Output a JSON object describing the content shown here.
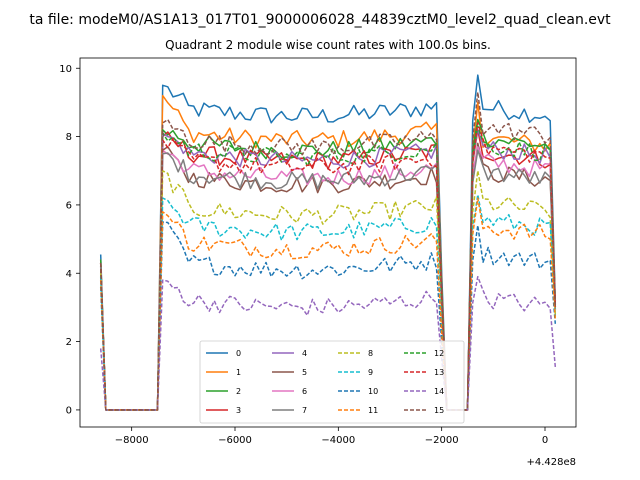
{
  "figure": {
    "suptitle": "ta file: modeM0/AS1A13_017T01_9000006028_44839cztM0_level2_quad_clean.evt",
    "title": "Quadrant 2 module wise count rates with 100.0s bins.",
    "offset_text": "+4.428e8"
  },
  "chart_data": {
    "type": "line",
    "title": "Quadrant 2 module wise count rates with 100.0s bins.",
    "xlabel": "",
    "ylabel": "",
    "x_offset": 442800000,
    "xlim": [
      -9000,
      600
    ],
    "ylim": [
      -0.5,
      10.3
    ],
    "xticks": [
      -8000,
      -6000,
      -4000,
      -2000,
      0
    ],
    "xtick_labels": [
      "−8000",
      "−6000",
      "−4000",
      "−2000",
      "0"
    ],
    "yticks": [
      0,
      2,
      4,
      6,
      8,
      10
    ],
    "ytick_labels": [
      "0",
      "2",
      "4",
      "6",
      "8",
      "10"
    ],
    "grid": false,
    "legend_placement": "lower center",
    "legend_columns": 4,
    "segments": [
      {
        "x_start": -8600,
        "x_end": -7500
      },
      {
        "x_start": -7400,
        "x_end": -2000
      },
      {
        "x_start": -1400,
        "x_end": 200
      }
    ],
    "series": [
      {
        "name": "0",
        "color": "#1f77b4",
        "dash": "solid",
        "level_obs1": 8.9,
        "level_obs2": 8.9,
        "start_value": 4.55,
        "peak_value": 9.5,
        "peak_value2": 9.8
      },
      {
        "name": "1",
        "color": "#ff7f0e",
        "dash": "solid",
        "level_obs1": 8.2,
        "level_obs2": 8.0,
        "start_value": 4.4,
        "peak_value": 9.2,
        "peak_value2": 9.0
      },
      {
        "name": "2",
        "color": "#2ca02c",
        "dash": "solid",
        "level_obs1": 7.9,
        "level_obs2": 8.0,
        "start_value": 4.4,
        "peak_value": 8.2,
        "peak_value2": 8.5
      },
      {
        "name": "3",
        "color": "#d62728",
        "dash": "solid",
        "level_obs1": 7.6,
        "level_obs2": 7.6,
        "start_value": 4.3,
        "peak_value": 8.0,
        "peak_value2": 8.2
      },
      {
        "name": "4",
        "color": "#9467bd",
        "dash": "solid",
        "level_obs1": 7.6,
        "level_obs2": 7.7,
        "start_value": 4.3,
        "peak_value": 8.1,
        "peak_value2": 8.2
      },
      {
        "name": "5",
        "color": "#8c564b",
        "dash": "solid",
        "level_obs1": 6.9,
        "level_obs2": 7.0,
        "start_value": 4.2,
        "peak_value": 7.6,
        "peak_value2": 7.8
      },
      {
        "name": "6",
        "color": "#e377c2",
        "dash": "solid",
        "level_obs1": 7.1,
        "level_obs2": 7.3,
        "start_value": 4.2,
        "peak_value": 7.6,
        "peak_value2": 7.7
      },
      {
        "name": "7",
        "color": "#7f7f7f",
        "dash": "solid",
        "level_obs1": 7.0,
        "level_obs2": 7.0,
        "start_value": 4.2,
        "peak_value": 7.5,
        "peak_value2": 7.6
      },
      {
        "name": "8",
        "color": "#bcbd22",
        "dash": "dashed",
        "level_obs1": 6.0,
        "level_obs2": 6.1,
        "start_value": 4.0,
        "peak_value": 7.0,
        "peak_value2": 7.0
      },
      {
        "name": "9",
        "color": "#17becf",
        "dash": "dashed",
        "level_obs1": 5.5,
        "level_obs2": 5.6,
        "start_value": 3.9,
        "peak_value": 6.2,
        "peak_value2": 6.3
      },
      {
        "name": "10",
        "color": "#1f77b4",
        "dash": "dashed",
        "level_obs1": 4.4,
        "level_obs2": 4.6,
        "start_value": 3.6,
        "peak_value": 5.5,
        "peak_value2": 5.4
      },
      {
        "name": "11",
        "color": "#ff7f0e",
        "dash": "dashed",
        "level_obs1": 5.0,
        "level_obs2": 5.4,
        "start_value": 3.8,
        "peak_value": 5.8,
        "peak_value2": 6.2
      },
      {
        "name": "12",
        "color": "#2ca02c",
        "dash": "dashed",
        "level_obs1": 7.7,
        "level_obs2": 7.8,
        "start_value": 4.3,
        "peak_value": 8.1,
        "peak_value2": 8.3
      },
      {
        "name": "13",
        "color": "#d62728",
        "dash": "dashed",
        "level_obs1": 7.4,
        "level_obs2": 7.7,
        "start_value": 4.3,
        "peak_value": 7.9,
        "peak_value2": 8.4
      },
      {
        "name": "14",
        "color": "#9467bd",
        "dash": "dashed",
        "level_obs1": 3.3,
        "level_obs2": 3.3,
        "start_value": 1.8,
        "peak_value": 3.8,
        "peak_value2": 3.9
      },
      {
        "name": "15",
        "color": "#8c564b",
        "dash": "dashed",
        "level_obs1": 8.0,
        "level_obs2": 8.3,
        "start_value": 4.3,
        "peak_value": 8.4,
        "peak_value2": 9.3
      }
    ]
  }
}
